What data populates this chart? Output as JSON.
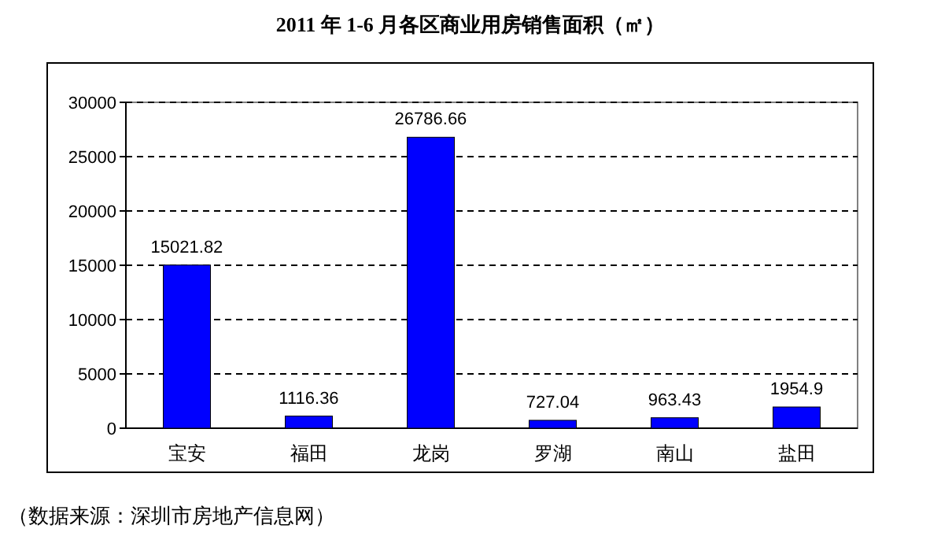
{
  "chart_data": {
    "type": "bar",
    "title": "2011 年 1-6 月各区商业用房销售面积（㎡）",
    "categories": [
      "宝安",
      "福田",
      "龙岗",
      "罗湖",
      "南山",
      "盐田"
    ],
    "values": [
      15021.82,
      1116.36,
      26786.66,
      727.04,
      963.43,
      1954.9
    ],
    "color": "#0000ff",
    "ylim": [
      0,
      30000
    ],
    "yticks": [
      0,
      5000,
      10000,
      15000,
      20000,
      25000,
      30000
    ],
    "grid": "y",
    "line_style": "dashed",
    "data_labels": true,
    "annotations": [
      "（数据来源：深圳市房地产信息网）"
    ]
  }
}
